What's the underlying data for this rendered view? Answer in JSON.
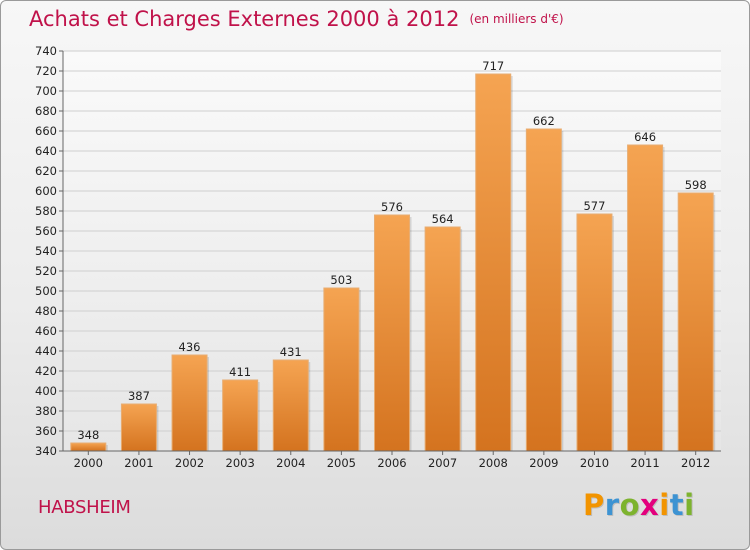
{
  "header": {
    "title": "Achats et Charges Externes 2000 à 2012",
    "unit": "(en milliers d'€)"
  },
  "footer": {
    "city": "HABSHEIM",
    "logo_letters": [
      "P",
      "r",
      "o",
      "x",
      "i",
      "t",
      "i"
    ],
    "logo_colors": [
      "#f29400",
      "#3d93d2",
      "#7db32e",
      "#e3007d",
      "#f29400",
      "#3d93d2",
      "#7db32e"
    ]
  },
  "chart_data": {
    "type": "bar",
    "title": "Achats et Charges Externes 2000 à 2012",
    "subtitle": "(en milliers d'€)",
    "xlabel": "",
    "ylabel": "",
    "categories": [
      "2000",
      "2001",
      "2002",
      "2003",
      "2004",
      "2005",
      "2006",
      "2007",
      "2008",
      "2009",
      "2010",
      "2011",
      "2012"
    ],
    "values": [
      348,
      387,
      436,
      411,
      431,
      503,
      576,
      564,
      717,
      662,
      577,
      646,
      598
    ],
    "ylim": [
      340,
      740
    ],
    "yticks": [
      340,
      360,
      380,
      400,
      420,
      440,
      460,
      480,
      500,
      520,
      540,
      560,
      580,
      600,
      620,
      640,
      660,
      680,
      700,
      720,
      740
    ],
    "grid": true,
    "legend": "none",
    "bar_color_top": "#f5a452",
    "bar_color_bottom": "#d4731f"
  }
}
